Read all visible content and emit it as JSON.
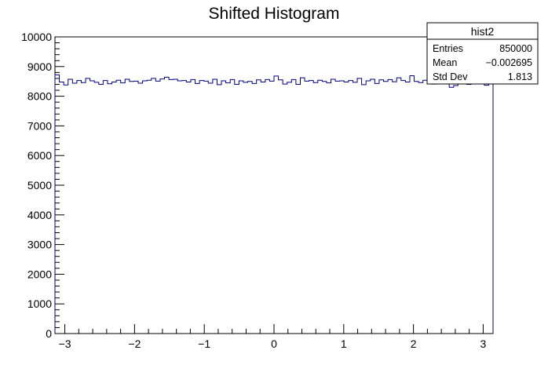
{
  "chart_data": {
    "type": "histogram",
    "title": "Shifted Histogram",
    "xlabel": "",
    "ylabel": "",
    "xlim": [
      -3.14159,
      3.14159
    ],
    "ylim": [
      0,
      10000
    ],
    "x_ticks": [
      "−3",
      "−2",
      "−1",
      "0",
      "1",
      "2",
      "3"
    ],
    "x_tick_values": [
      -3,
      -2,
      -1,
      0,
      1,
      2,
      3
    ],
    "y_ticks": [
      "0",
      "1000",
      "2000",
      "3000",
      "4000",
      "5000",
      "6000",
      "7000",
      "8000",
      "9000",
      "10000"
    ],
    "y_tick_values": [
      0,
      1000,
      2000,
      3000,
      4000,
      5000,
      6000,
      7000,
      8000,
      9000,
      10000
    ],
    "line_color": "#000080",
    "bin_count": 100,
    "bin_values": [
      8720,
      8480,
      8380,
      8570,
      8440,
      8530,
      8460,
      8600,
      8520,
      8470,
      8400,
      8530,
      8420,
      8480,
      8540,
      8450,
      8570,
      8500,
      8510,
      8440,
      8520,
      8540,
      8600,
      8510,
      8580,
      8640,
      8560,
      8570,
      8520,
      8530,
      8480,
      8560,
      8430,
      8530,
      8510,
      8440,
      8570,
      8390,
      8520,
      8450,
      8560,
      8400,
      8520,
      8470,
      8500,
      8430,
      8550,
      8480,
      8560,
      8510,
      8680,
      8550,
      8410,
      8470,
      8560,
      8400,
      8620,
      8510,
      8530,
      8460,
      8540,
      8500,
      8450,
      8570,
      8510,
      8520,
      8480,
      8530,
      8470,
      8600,
      8390,
      8520,
      8570,
      8430,
      8550,
      8500,
      8560,
      8490,
      8620,
      8530,
      8480,
      8690,
      8500,
      8460,
      8540,
      8490,
      8410,
      8570,
      8500,
      8470,
      8300,
      8360,
      8450,
      8500,
      8400,
      8540,
      8490,
      8560,
      8370,
      8450
    ]
  },
  "stats_box": {
    "title": "hist2",
    "entries_label": "Entries",
    "entries_value": "850000",
    "mean_label": "Mean",
    "mean_value": "−0.002695",
    "stddev_label": "Std Dev",
    "stddev_value": "1.813"
  }
}
